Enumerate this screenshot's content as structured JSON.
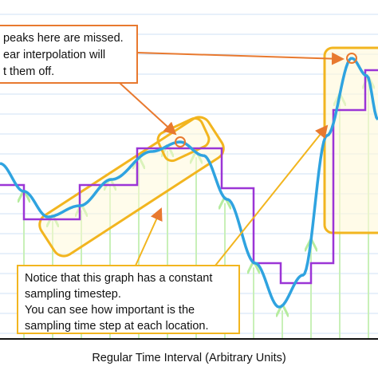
{
  "annotations": {
    "top_note": [
      "peaks here are missed.",
      "ear interpolation will",
      "t them off."
    ],
    "bottom_note": [
      "Notice that this graph has a constant",
      "sampling timestep.",
      "You can see how important is the",
      "sampling time step at each location."
    ]
  },
  "x_axis_label": "Regular Time Interval (Arbitrary Units)"
}
